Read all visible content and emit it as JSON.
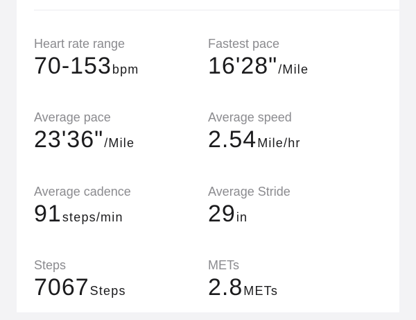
{
  "metrics": [
    {
      "label": "Heart rate range",
      "value": "70-153",
      "unit": "bpm"
    },
    {
      "label": "Fastest pace",
      "value": "16'28\"",
      "unit": "/Mile"
    },
    {
      "label": "Average pace",
      "value": "23'36\"",
      "unit": "/Mile"
    },
    {
      "label": "Average speed",
      "value": "2.54",
      "unit": "Mile/hr"
    },
    {
      "label": "Average cadence",
      "value": "91",
      "unit": "steps/min"
    },
    {
      "label": "Average Stride",
      "value": "29",
      "unit": "in"
    },
    {
      "label": "Steps",
      "value": "7067",
      "unit": "Steps"
    },
    {
      "label": "METs",
      "value": "2.8",
      "unit": "METs"
    }
  ]
}
